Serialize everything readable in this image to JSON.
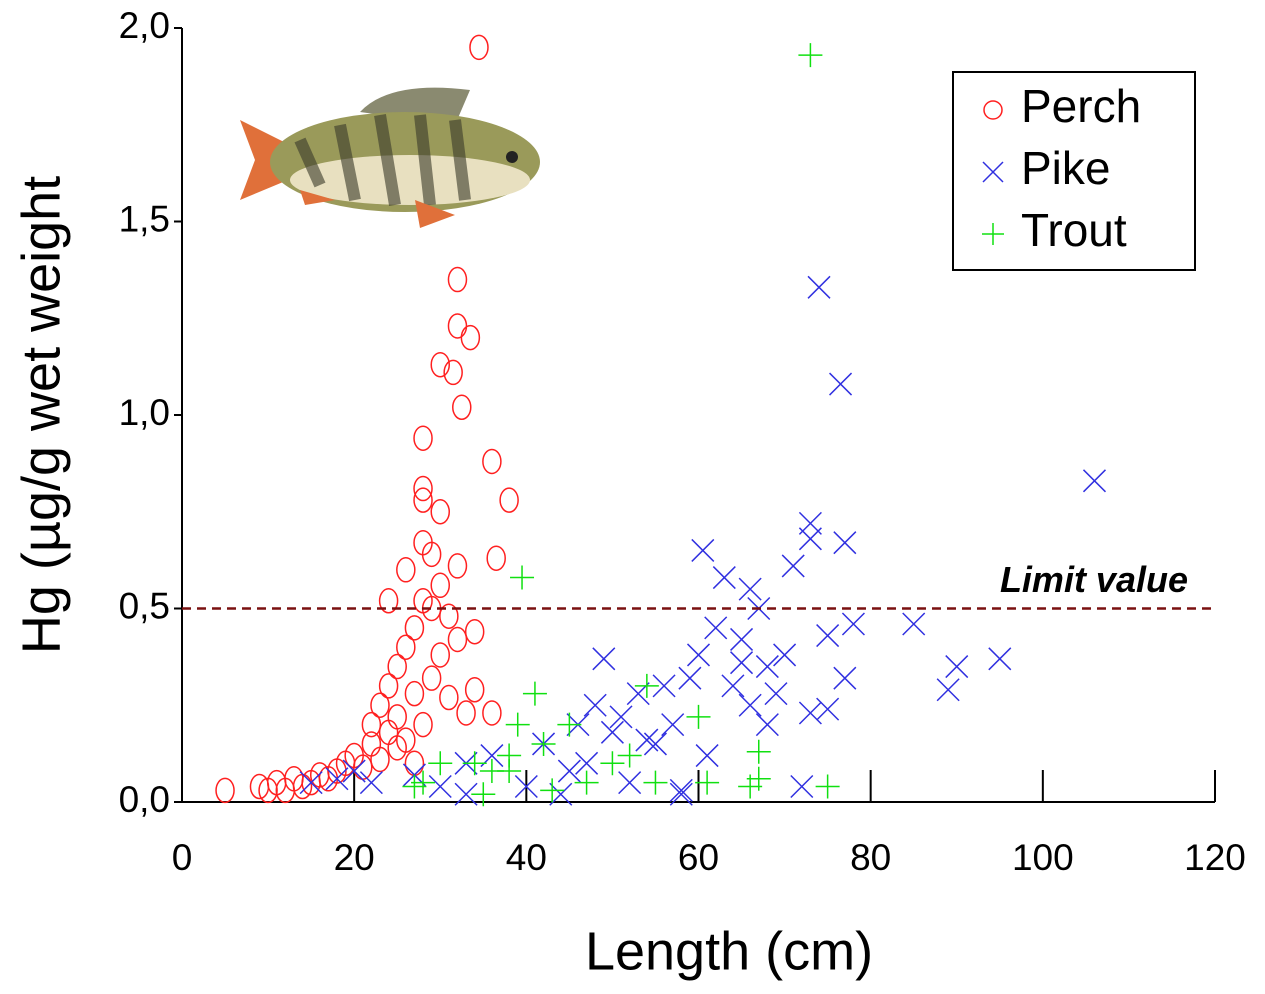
{
  "chart_data": {
    "type": "scatter",
    "xlabel": "Length (cm)",
    "ylabel": "Hg (µg/g wet weight",
    "xlim": [
      0,
      120
    ],
    "xticks": [
      0,
      20,
      40,
      60,
      80,
      100,
      120
    ],
    "ylim": [
      0,
      2
    ],
    "yticks": [
      {
        "value": 0,
        "label": "0,0"
      },
      {
        "value": 0.5,
        "label": "0,5"
      },
      {
        "value": 1,
        "label": "1,0"
      },
      {
        "value": 1.5,
        "label": "1,5"
      },
      {
        "value": 2,
        "label": "2,0"
      }
    ],
    "legend": "top-right",
    "annotations": [
      {
        "text": "Limit value",
        "y": 0.5,
        "color": "#7a1010"
      }
    ],
    "series": [
      {
        "name": "Perch",
        "color": "#ff2020",
        "marker": "circle",
        "x": [
          34.5,
          32,
          32,
          33.5,
          30,
          31.5,
          32.5,
          28,
          36,
          38,
          28,
          28,
          30,
          28,
          29,
          36.5,
          32,
          26,
          5,
          9,
          10,
          11,
          12,
          13,
          14,
          15,
          16,
          17,
          18,
          19,
          20,
          21,
          22,
          22,
          23,
          23,
          24,
          24,
          25,
          25,
          26,
          26,
          27,
          27,
          28,
          28,
          29,
          29,
          30,
          30,
          31,
          31,
          32,
          33,
          34,
          34,
          36,
          27,
          25,
          24
        ],
        "values": [
          1.95,
          1.35,
          1.23,
          1.2,
          1.13,
          1.11,
          1.02,
          0.94,
          0.88,
          0.78,
          0.81,
          0.78,
          0.75,
          0.67,
          0.64,
          0.63,
          0.61,
          0.6,
          0.03,
          0.04,
          0.03,
          0.05,
          0.03,
          0.06,
          0.04,
          0.05,
          0.07,
          0.06,
          0.08,
          0.1,
          0.12,
          0.09,
          0.15,
          0.2,
          0.11,
          0.25,
          0.18,
          0.3,
          0.22,
          0.35,
          0.16,
          0.4,
          0.28,
          0.45,
          0.2,
          0.52,
          0.32,
          0.5,
          0.38,
          0.56,
          0.27,
          0.48,
          0.42,
          0.23,
          0.44,
          0.29,
          0.23,
          0.1,
          0.14,
          0.52
        ]
      },
      {
        "name": "Pike",
        "color": "#3030e0",
        "marker": "x",
        "x": [
          74,
          76.5,
          106,
          73,
          73,
          77,
          60.5,
          71,
          63,
          66,
          67,
          85,
          78,
          90,
          95,
          89,
          49,
          15,
          18,
          20,
          22,
          27,
          30,
          33,
          36,
          40,
          42,
          44,
          46,
          47,
          48,
          50,
          51,
          52,
          53,
          55,
          56,
          57,
          58,
          59,
          60,
          62,
          64,
          65,
          66,
          68,
          69,
          70,
          72,
          73,
          75,
          77,
          75,
          33,
          45,
          61,
          54,
          65,
          68,
          58
        ],
        "values": [
          1.33,
          1.08,
          0.83,
          0.72,
          0.68,
          0.67,
          0.65,
          0.61,
          0.58,
          0.55,
          0.5,
          0.46,
          0.46,
          0.35,
          0.37,
          0.29,
          0.37,
          0.05,
          0.06,
          0.08,
          0.05,
          0.07,
          0.04,
          0.1,
          0.12,
          0.04,
          0.15,
          0.02,
          0.2,
          0.1,
          0.25,
          0.18,
          0.22,
          0.05,
          0.28,
          0.15,
          0.3,
          0.2,
          0.03,
          0.32,
          0.38,
          0.45,
          0.3,
          0.42,
          0.25,
          0.35,
          0.28,
          0.38,
          0.04,
          0.23,
          0.24,
          0.32,
          0.43,
          0.02,
          0.08,
          0.12,
          0.16,
          0.36,
          0.2,
          0.02
        ]
      },
      {
        "name": "Trout",
        "color": "#10e010",
        "marker": "plus",
        "x": [
          73,
          39.5,
          41,
          39,
          38,
          36,
          34,
          35,
          30,
          27,
          28,
          43,
          45,
          47,
          52,
          54,
          55,
          60,
          61,
          67,
          66,
          75,
          67,
          38,
          42,
          50
        ],
        "values": [
          1.93,
          0.58,
          0.28,
          0.2,
          0.12,
          0.08,
          0.1,
          0.02,
          0.1,
          0.04,
          0.05,
          0.03,
          0.2,
          0.05,
          0.12,
          0.3,
          0.05,
          0.22,
          0.05,
          0.13,
          0.04,
          0.04,
          0.06,
          0.08,
          0.15,
          0.1
        ]
      }
    ]
  }
}
